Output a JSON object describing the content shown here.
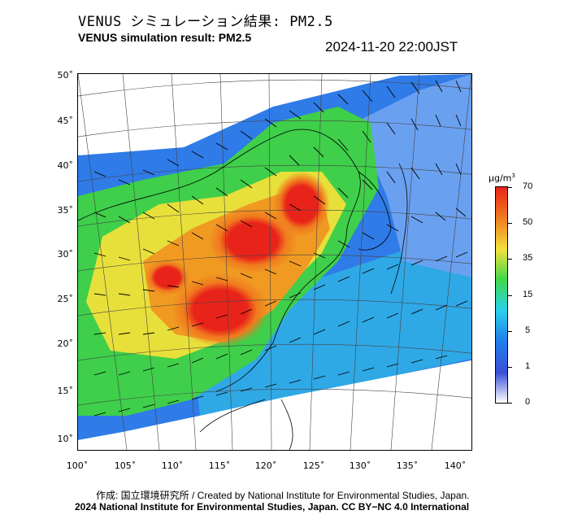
{
  "header": {
    "title_jp": "VENUS シミュレーション結果: PM2.5",
    "title_en": "VENUS simulation result: PM2.5",
    "timestamp": "2024-11-20 22:00JST"
  },
  "axes": {
    "lat_ticks": [
      {
        "value": 50,
        "label": "50˚"
      },
      {
        "value": 45,
        "label": "45˚"
      },
      {
        "value": 40,
        "label": "40˚"
      },
      {
        "value": 35,
        "label": "35˚"
      },
      {
        "value": 30,
        "label": "30˚"
      },
      {
        "value": 25,
        "label": "25˚"
      },
      {
        "value": 20,
        "label": "20˚"
      },
      {
        "value": 15,
        "label": "15˚"
      },
      {
        "value": 10,
        "label": "10˚"
      }
    ],
    "lon_ticks": [
      {
        "value": 100,
        "label": "100˚"
      },
      {
        "value": 105,
        "label": "105˚"
      },
      {
        "value": 110,
        "label": "110˚"
      },
      {
        "value": 115,
        "label": "115˚"
      },
      {
        "value": 120,
        "label": "120˚"
      },
      {
        "value": 125,
        "label": "125˚"
      },
      {
        "value": 130,
        "label": "130˚"
      },
      {
        "value": 135,
        "label": "135˚"
      },
      {
        "value": 140,
        "label": "140˚"
      }
    ]
  },
  "legend": {
    "unit_base": "μg/m",
    "unit_exp": "3",
    "ticks": [
      {
        "value": 70,
        "label": "70"
      },
      {
        "value": 50,
        "label": "50"
      },
      {
        "value": 35,
        "label": "35"
      },
      {
        "value": 15,
        "label": "15"
      },
      {
        "value": 5,
        "label": "5"
      },
      {
        "value": 1,
        "label": "1"
      },
      {
        "value": 0,
        "label": "0"
      }
    ],
    "colors": [
      "#ffffff",
      "#3a4fd6",
      "#1e7fee",
      "#2ad1e8",
      "#3fd84a",
      "#f2e23a",
      "#f07a1e",
      "#e8231a"
    ]
  },
  "footer": {
    "credit": "作成: 国立環境研究所 / Created by National Institute for Environmental Studies, Japan.",
    "copyright": "2024 National Institute for Environmental Studies, Japan. CC BY−NC 4.0 International"
  }
}
